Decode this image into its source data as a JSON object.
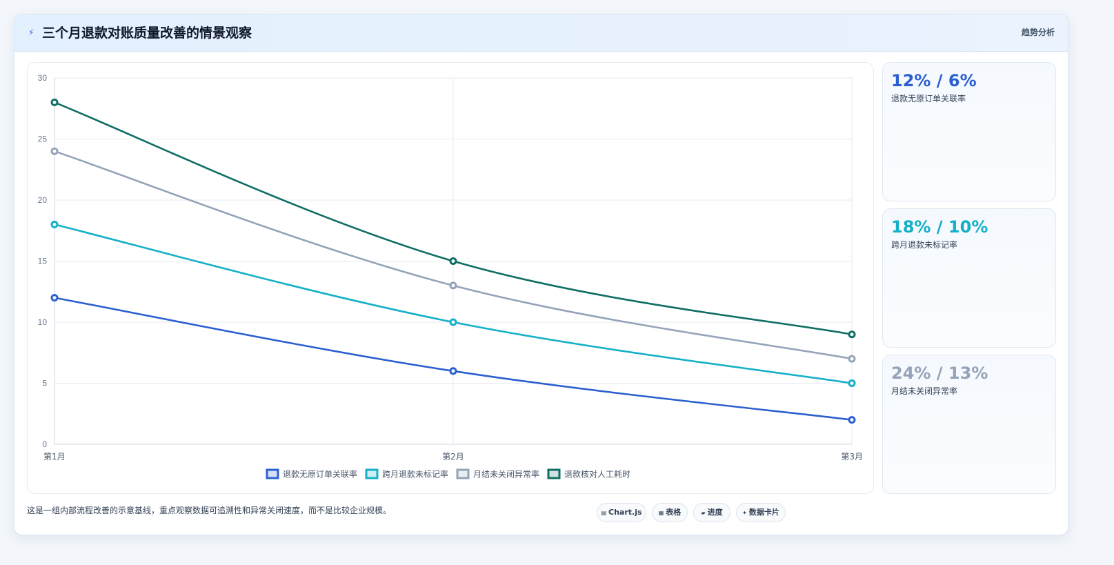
{
  "header": {
    "icon": "lightning-icon",
    "title": "三个月退款对账质量改善的情景观察",
    "tag": "趋势分析"
  },
  "chart_data": {
    "type": "line",
    "categories": [
      "第1月",
      "第2月",
      "第3月"
    ],
    "ylim": [
      0,
      30
    ],
    "yticks": [
      0,
      5,
      10,
      15,
      20,
      25,
      30
    ],
    "grid": true,
    "legend_position": "bottom",
    "series": [
      {
        "name": "退款无原订单关联率",
        "values": [
          12,
          6,
          2
        ],
        "color": "#2b5fd0"
      },
      {
        "name": "跨月退款未标记率",
        "values": [
          18,
          10,
          5
        ],
        "color": "#14b0c8"
      },
      {
        "name": "月结未关闭异常率",
        "values": [
          24,
          13,
          7
        ],
        "color": "#94a3b8"
      },
      {
        "name": "退款核对人工耗时",
        "values": [
          28,
          15,
          9
        ],
        "color": "#0f6e63"
      }
    ]
  },
  "kpis": [
    {
      "value": "12% / 6%",
      "label": "退款无原订单关联率",
      "color": "#2b5fd0"
    },
    {
      "value": "18% / 10%",
      "label": "跨月退款未标记率",
      "color": "#14b0c8"
    },
    {
      "value": "24% / 13%",
      "label": "月结未关闭异常率",
      "color": "#94a3b8"
    }
  ],
  "footnote": "这是一组内部流程改善的示意基线，重点观察数据可追溯性和异常关闭速度，而不是比较企业规模。",
  "chips": [
    {
      "icon": "chart-icon",
      "label": "Chart.js"
    },
    {
      "icon": "table-icon",
      "label": "表格"
    },
    {
      "icon": "progress-icon",
      "label": "进度"
    },
    {
      "icon": "sparkle-icon",
      "label": "数据卡片"
    }
  ]
}
